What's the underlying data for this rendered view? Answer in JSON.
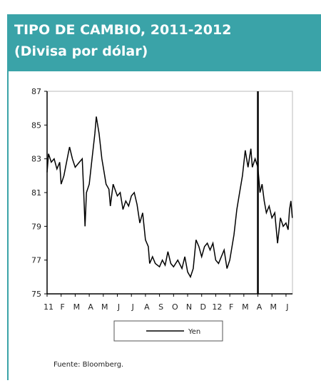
{
  "chart_data": {
    "type": "line",
    "title": "TIPO DE CAMBIO, 2011-2012",
    "subtitle": "(Divisa por dólar)",
    "source": "Fuente: Bloomberg.",
    "xlim": [
      0,
      17.46
    ],
    "ylim": [
      75,
      87
    ],
    "yticks": [
      75,
      77,
      79,
      81,
      83,
      85,
      87
    ],
    "xticks": [
      {
        "value": 0,
        "label": "11"
      },
      {
        "value": 1,
        "label": "F"
      },
      {
        "value": 2,
        "label": "M"
      },
      {
        "value": 3,
        "label": "A"
      },
      {
        "value": 4,
        "label": "M"
      },
      {
        "value": 5,
        "label": "J"
      },
      {
        "value": 6,
        "label": "J"
      },
      {
        "value": 7,
        "label": "A"
      },
      {
        "value": 8,
        "label": "S"
      },
      {
        "value": 9,
        "label": "O"
      },
      {
        "value": 10,
        "label": "N"
      },
      {
        "value": 11,
        "label": "D"
      },
      {
        "value": 12,
        "label": "12"
      },
      {
        "value": 13,
        "label": "F"
      },
      {
        "value": 14,
        "label": "M"
      },
      {
        "value": 15,
        "label": "A"
      },
      {
        "value": 16,
        "label": "M"
      },
      {
        "value": 17,
        "label": "J"
      }
    ],
    "vline": 15,
    "x": [
      0,
      0.1,
      0.3,
      0.5,
      0.7,
      0.9,
      1.0,
      1.2,
      1.5,
      1.6,
      1.8,
      2.0,
      2.3,
      2.5,
      2.6,
      2.7,
      2.8,
      3.0,
      3.2,
      3.4,
      3.5,
      3.7,
      3.9,
      4.0,
      4.2,
      4.4,
      4.5,
      4.7,
      5.0,
      5.2,
      5.4,
      5.6,
      5.8,
      6.0,
      6.2,
      6.4,
      6.6,
      6.8,
      7.0,
      7.2,
      7.3,
      7.5,
      7.7,
      8.0,
      8.2,
      8.4,
      8.6,
      8.8,
      9.0,
      9.3,
      9.6,
      9.8,
      10.0,
      10.2,
      10.4,
      10.6,
      10.8,
      11.0,
      11.2,
      11.4,
      11.6,
      11.8,
      12.0,
      12.2,
      12.4,
      12.6,
      12.8,
      13.0,
      13.3,
      13.5,
      13.7,
      13.9,
      14.1,
      14.3,
      14.5,
      14.6,
      14.8,
      15.0,
      15.15,
      15.3,
      15.45,
      15.6,
      15.8,
      16.0,
      16.2,
      16.4,
      16.6,
      16.8,
      17.0,
      17.15,
      17.25,
      17.35,
      17.45
    ],
    "series": [
      {
        "name": "Yen",
        "color": "#000000",
        "values": [
          82.2,
          83.3,
          82.8,
          83.0,
          82.4,
          82.8,
          81.5,
          82.0,
          83.3,
          83.7,
          83.0,
          82.5,
          82.8,
          83.0,
          81.2,
          79.0,
          81.0,
          81.5,
          83.0,
          84.5,
          85.5,
          84.5,
          83.0,
          82.5,
          81.5,
          81.2,
          80.2,
          81.5,
          80.8,
          81.0,
          80.0,
          80.5,
          80.2,
          80.8,
          81.0,
          80.3,
          79.2,
          79.8,
          78.2,
          77.8,
          76.8,
          77.2,
          76.8,
          76.6,
          77.0,
          76.7,
          77.5,
          76.8,
          76.6,
          77.0,
          76.5,
          77.2,
          76.3,
          76.0,
          76.5,
          78.2,
          77.8,
          77.2,
          77.8,
          78.0,
          77.6,
          78.0,
          77.0,
          76.8,
          77.2,
          77.6,
          76.5,
          77.0,
          78.5,
          80.0,
          81.0,
          82.0,
          83.5,
          82.5,
          83.6,
          82.5,
          83.0,
          82.5,
          81.0,
          81.5,
          80.5,
          79.8,
          80.2,
          79.5,
          79.8,
          78.0,
          79.5,
          79.0,
          79.2,
          78.8,
          80.0,
          80.5,
          79.5
        ]
      }
    ]
  }
}
